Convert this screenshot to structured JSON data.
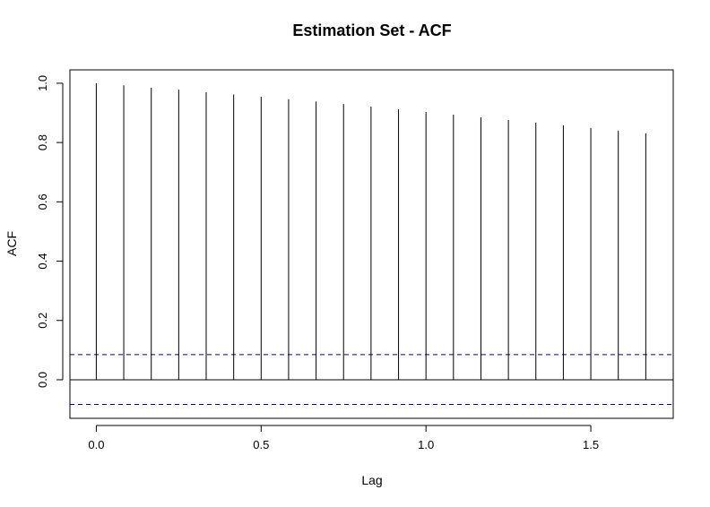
{
  "chart_data": {
    "type": "bar",
    "title": "Estimation Set - ACF",
    "xlabel": "Lag",
    "ylabel": "ACF",
    "xlim": [
      -0.08,
      1.75
    ],
    "ylim": [
      -0.13,
      1.045
    ],
    "x_ticks": [
      {
        "value": 0.0,
        "label": "0.0"
      },
      {
        "value": 0.5,
        "label": "0.5"
      },
      {
        "value": 1.0,
        "label": "1.0"
      },
      {
        "value": 1.5,
        "label": "1.5"
      }
    ],
    "y_ticks": [
      {
        "value": 0.0,
        "label": "0.0"
      },
      {
        "value": 0.2,
        "label": "0.2"
      },
      {
        "value": 0.4,
        "label": "0.4"
      },
      {
        "value": 0.6,
        "label": "0.6"
      },
      {
        "value": 0.8,
        "label": "0.8"
      },
      {
        "value": 1.0,
        "label": "1.0"
      }
    ],
    "lags": [
      0,
      0.0833,
      0.1667,
      0.25,
      0.3333,
      0.4167,
      0.5,
      0.5833,
      0.6667,
      0.75,
      0.8333,
      0.9167,
      1.0,
      1.0833,
      1.1667,
      1.25,
      1.3333,
      1.4167,
      1.5,
      1.5833,
      1.6667
    ],
    "acf": [
      1.0,
      0.993,
      0.985,
      0.978,
      0.97,
      0.962,
      0.954,
      0.946,
      0.938,
      0.93,
      0.921,
      0.912,
      0.903,
      0.894,
      0.885,
      0.876,
      0.867,
      0.858,
      0.849,
      0.84,
      0.831
    ],
    "confidence_bounds": [
      0.085,
      -0.083
    ],
    "zero_line": 0,
    "grid": false,
    "colors": {
      "spikes": "#000000",
      "confidence": "#00008b",
      "axes": "#000000"
    }
  }
}
